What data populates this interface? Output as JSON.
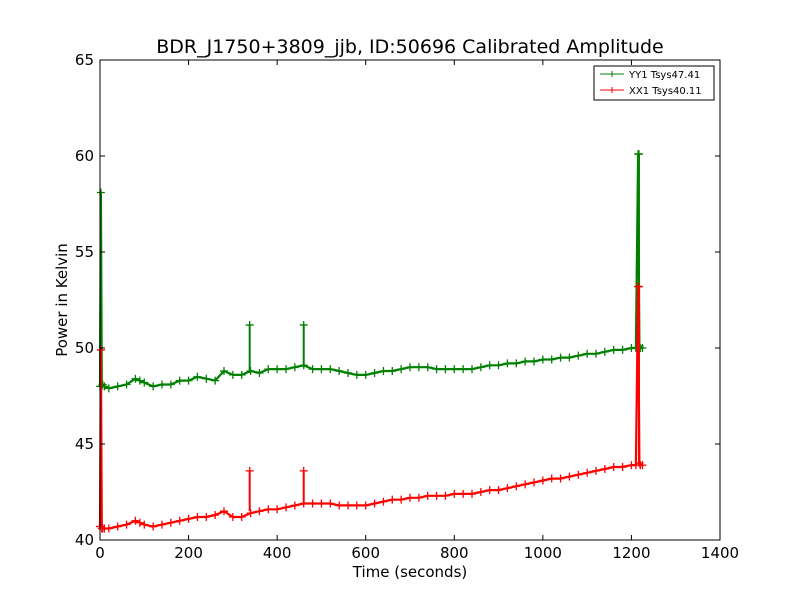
{
  "chart_data": {
    "type": "line",
    "title": "BDR_J1750+3809_jjb, ID:50696 Calibrated Amplitude",
    "xlabel": "Time (seconds)",
    "ylabel": "Power in Kelvin",
    "xlim": [
      0,
      1400
    ],
    "ylim": [
      40,
      65
    ],
    "xticks": [
      0,
      200,
      400,
      600,
      800,
      1000,
      1200,
      1400
    ],
    "yticks": [
      40,
      45,
      50,
      55,
      60,
      65
    ],
    "grid": false,
    "legend_position": "top-right",
    "series": [
      {
        "name": "YY1 Tsys47.41",
        "color": "#008000",
        "marker": "+",
        "x": [
          0,
          2,
          4,
          6,
          10,
          20,
          40,
          60,
          80,
          90,
          100,
          120,
          140,
          160,
          180,
          200,
          220,
          240,
          260,
          280,
          300,
          320,
          340,
          360,
          380,
          400,
          420,
          440,
          460,
          480,
          500,
          520,
          540,
          560,
          580,
          600,
          620,
          640,
          660,
          680,
          700,
          720,
          740,
          760,
          780,
          800,
          820,
          840,
          860,
          880,
          900,
          920,
          940,
          960,
          980,
          1000,
          1020,
          1040,
          1060,
          1080,
          1100,
          1120,
          1140,
          1160,
          1180,
          1200,
          1210,
          1215,
          1218,
          1220,
          1225
        ],
        "y": [
          48.0,
          58.1,
          48.0,
          48.1,
          48.0,
          47.9,
          48.0,
          48.1,
          48.4,
          48.3,
          48.2,
          48.0,
          48.1,
          48.1,
          48.3,
          48.3,
          48.5,
          48.4,
          48.3,
          48.8,
          48.6,
          48.6,
          48.8,
          48.7,
          48.9,
          48.9,
          48.9,
          49.0,
          49.1,
          48.9,
          48.9,
          48.9,
          48.8,
          48.7,
          48.6,
          48.6,
          48.7,
          48.8,
          48.8,
          48.9,
          49.0,
          49.0,
          49.0,
          48.9,
          48.9,
          48.9,
          48.9,
          48.9,
          49.0,
          49.1,
          49.1,
          49.2,
          49.2,
          49.3,
          49.3,
          49.4,
          49.4,
          49.5,
          49.5,
          49.6,
          49.7,
          49.7,
          49.8,
          49.9,
          49.9,
          50.0,
          50.0,
          60.1,
          50.1,
          50.0,
          50.0
        ]
      },
      {
        "name": "XX1 Tsys40.11",
        "color": "#ff0000",
        "marker": "+",
        "x": [
          0,
          2,
          4,
          6,
          10,
          20,
          40,
          60,
          80,
          90,
          100,
          120,
          140,
          160,
          180,
          200,
          220,
          240,
          260,
          280,
          300,
          320,
          340,
          360,
          380,
          400,
          420,
          440,
          460,
          480,
          500,
          520,
          540,
          560,
          580,
          600,
          620,
          640,
          660,
          680,
          700,
          720,
          740,
          760,
          780,
          800,
          820,
          840,
          860,
          880,
          900,
          920,
          940,
          960,
          980,
          1000,
          1020,
          1040,
          1060,
          1080,
          1100,
          1120,
          1140,
          1160,
          1180,
          1200,
          1210,
          1215,
          1218,
          1220,
          1225
        ],
        "y": [
          40.7,
          49.9,
          40.6,
          40.6,
          40.6,
          40.6,
          40.7,
          40.8,
          41.0,
          40.9,
          40.8,
          40.7,
          40.8,
          40.9,
          41.0,
          41.1,
          41.2,
          41.2,
          41.3,
          41.5,
          41.2,
          41.2,
          41.4,
          41.5,
          41.6,
          41.6,
          41.7,
          41.8,
          41.9,
          41.9,
          41.9,
          41.9,
          41.8,
          41.8,
          41.8,
          41.8,
          41.9,
          42.0,
          42.1,
          42.1,
          42.2,
          42.2,
          42.3,
          42.3,
          42.3,
          42.4,
          42.4,
          42.4,
          42.5,
          42.6,
          42.6,
          42.7,
          42.8,
          42.9,
          43.0,
          43.1,
          43.2,
          43.2,
          43.3,
          43.4,
          43.5,
          43.6,
          43.7,
          43.8,
          43.8,
          43.9,
          43.9,
          53.2,
          44.0,
          43.9,
          43.9
        ]
      }
    ],
    "spikes": [
      {
        "series": 0,
        "x": 338,
        "y_top": 51.2,
        "y_base": 48.7
      },
      {
        "series": 0,
        "x": 460,
        "y_top": 51.2,
        "y_base": 49.0
      },
      {
        "series": 0,
        "x": 1217,
        "y_top": 60.1,
        "y_base": 50.0
      },
      {
        "series": 1,
        "x": 338,
        "y_top": 43.6,
        "y_base": 41.5
      },
      {
        "series": 1,
        "x": 460,
        "y_top": 43.6,
        "y_base": 41.9
      },
      {
        "series": 1,
        "x": 1217,
        "y_top": 53.2,
        "y_base": 43.9
      }
    ]
  }
}
